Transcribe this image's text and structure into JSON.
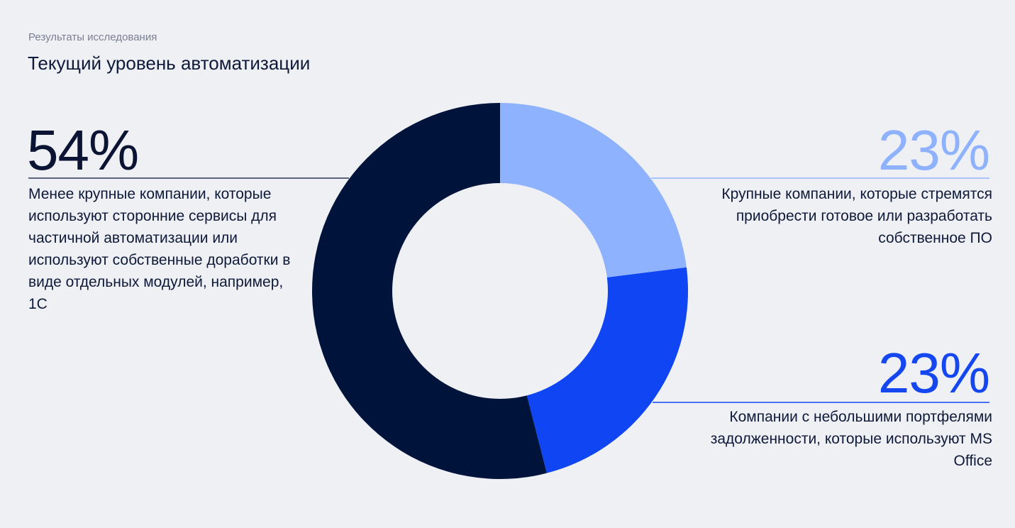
{
  "header": {
    "eyebrow": "Результаты исследования",
    "title": "Текущий уровень автоматизации"
  },
  "colors": {
    "background": "#eef0f4",
    "dark_navy": "#00133a",
    "light_blue": "#8fb2ff",
    "bright_blue": "#0f45f2",
    "leader_line": "#0f1a3a"
  },
  "chart_data": {
    "type": "pie",
    "variant": "donut",
    "slices": [
      {
        "key": "light",
        "value": 23,
        "label": "23%",
        "color": "#8fb2ff",
        "description": "Крупные компании, которые стремятся приобрести готовое или разработать собственное ПО"
      },
      {
        "key": "bright",
        "value": 23,
        "label": "23%",
        "color": "#0f45f2",
        "description": "Компании с небольшими портфелями задолженности, которые используют MS Office"
      },
      {
        "key": "dark",
        "value": 54,
        "label": "54%",
        "color": "#00133a",
        "description": "Менее крупные компании, которые используют сторонние сервисы для частичной автоматизации или используют собственные доработки в виде отдельных модулей, например, 1С"
      }
    ]
  }
}
